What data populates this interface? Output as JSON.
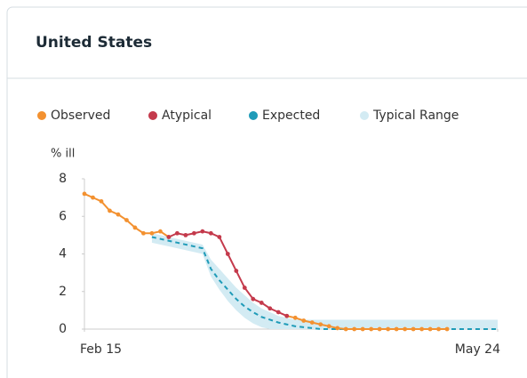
{
  "chart_data": {
    "type": "line",
    "title": "United States",
    "y_label": "% ill",
    "x": [
      0,
      2,
      4,
      6,
      8,
      10,
      12,
      14,
      16,
      18,
      20,
      22,
      24,
      26,
      28,
      30,
      32,
      34,
      36,
      38,
      40,
      42,
      44,
      46,
      48,
      50,
      52,
      54,
      56,
      58,
      60,
      62,
      64,
      66,
      68,
      70,
      72,
      74,
      76,
      78,
      80,
      82,
      84,
      86,
      88,
      90,
      92,
      94,
      96,
      98
    ],
    "xlim": [
      0,
      98
    ],
    "xticks": [
      {
        "value": 0,
        "label": "Feb 15"
      },
      {
        "value": 98,
        "label": "May 24"
      }
    ],
    "ylim": [
      0,
      8
    ],
    "yticks": [
      0,
      2,
      4,
      6,
      8
    ],
    "grid": false,
    "series": [
      {
        "name": "Observed",
        "color": "#f39130",
        "values": [
          7.2,
          7.0,
          6.8,
          6.3,
          6.1,
          5.8,
          5.4,
          5.1,
          5.1,
          5.2,
          4.9,
          null,
          null,
          null,
          null,
          null,
          null,
          null,
          null,
          null,
          null,
          null,
          null,
          null,
          0.7,
          0.6,
          0.45,
          0.35,
          0.25,
          0.15,
          0.05,
          0,
          0,
          0,
          0,
          0,
          0,
          0,
          0,
          0,
          0,
          0,
          0,
          0,
          null,
          null,
          null,
          null,
          null,
          null
        ]
      },
      {
        "name": "Atypical",
        "color": "#c43a4c",
        "values": [
          null,
          null,
          null,
          null,
          null,
          null,
          null,
          null,
          null,
          null,
          4.9,
          5.1,
          5.0,
          5.1,
          5.2,
          5.1,
          4.9,
          4.0,
          3.1,
          2.2,
          1.6,
          1.4,
          1.1,
          0.9,
          0.7,
          null,
          null,
          null,
          null,
          null,
          null,
          null,
          null,
          null,
          null,
          null,
          null,
          null,
          null,
          null,
          null,
          null,
          null,
          null,
          null,
          null,
          null,
          null,
          null,
          null
        ]
      },
      {
        "name": "Expected",
        "color": "#1f9bb8",
        "values": [
          null,
          null,
          null,
          null,
          null,
          null,
          null,
          null,
          4.9,
          4.8,
          4.7,
          4.6,
          4.5,
          4.4,
          4.3,
          3.2,
          2.6,
          2.1,
          1.6,
          1.2,
          0.9,
          0.65,
          0.5,
          0.35,
          0.25,
          0.15,
          0.1,
          0.05,
          0,
          0,
          0,
          0,
          0,
          0,
          0,
          0,
          0,
          0,
          0,
          0,
          0,
          0,
          0,
          0,
          0,
          0,
          0,
          0,
          0,
          0
        ]
      },
      {
        "name": "Typical Range",
        "color": "#d3ebf3",
        "lower": [
          null,
          null,
          null,
          null,
          null,
          null,
          null,
          null,
          4.6,
          4.5,
          4.4,
          4.3,
          4.2,
          4.1,
          4.0,
          2.8,
          2.1,
          1.5,
          1.0,
          0.6,
          0.3,
          0.1,
          0,
          0,
          0,
          0,
          0,
          0,
          0,
          0,
          0,
          0,
          0,
          0,
          0,
          0,
          0,
          0,
          0,
          0,
          0,
          0,
          0,
          0,
          0,
          0,
          0,
          0,
          0,
          0
        ],
        "upper": [
          null,
          null,
          null,
          null,
          null,
          null,
          null,
          null,
          5.1,
          5.0,
          4.9,
          4.8,
          4.7,
          4.6,
          4.5,
          3.7,
          3.2,
          2.7,
          2.2,
          1.8,
          1.4,
          1.1,
          0.9,
          0.7,
          0.6,
          0.5,
          0.5,
          0.5,
          0.5,
          0.5,
          0.5,
          0.5,
          0.5,
          0.5,
          0.5,
          0.5,
          0.5,
          0.5,
          0.5,
          0.5,
          0.5,
          0.5,
          0.5,
          0.5,
          0.5,
          0.5,
          0.5,
          0.5,
          0.5,
          0.5
        ]
      }
    ]
  }
}
